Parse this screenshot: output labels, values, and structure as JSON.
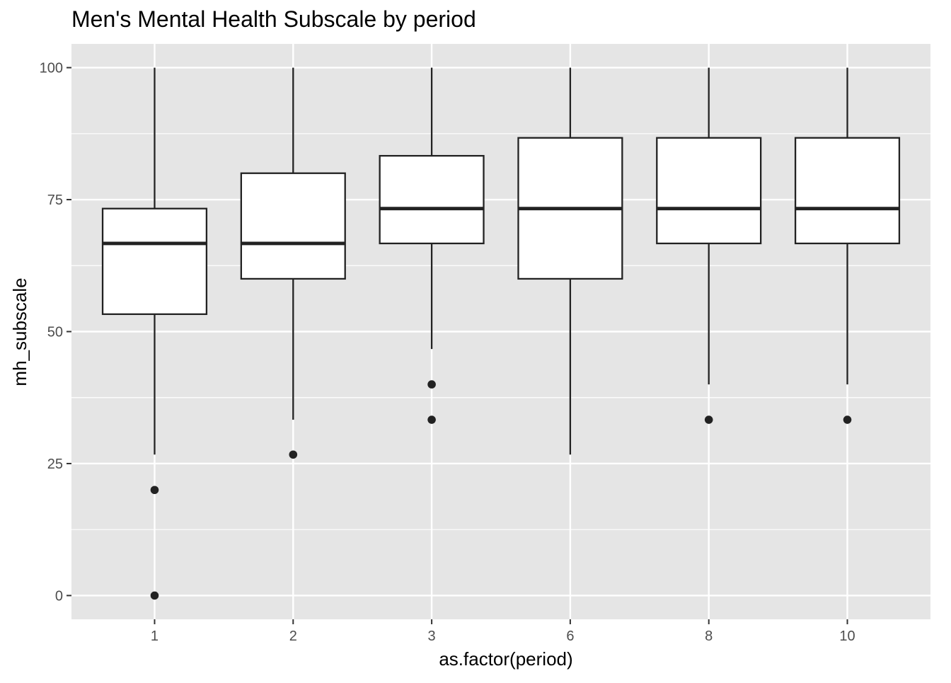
{
  "chart_data": {
    "type": "boxplot",
    "title": "Men's Mental Health Subscale by period",
    "xlabel": "as.factor(period)",
    "ylabel": "mh_subscale",
    "ylim": [
      -4.5,
      104.5
    ],
    "y_ticks": [
      0,
      25,
      50,
      75,
      100
    ],
    "grid": true,
    "categories": [
      "1",
      "2",
      "3",
      "6",
      "8",
      "10"
    ],
    "boxes": [
      {
        "category": "1",
        "whisker_low": 26.7,
        "q1": 53.3,
        "median": 66.7,
        "q3": 73.3,
        "whisker_high": 100,
        "outliers": [
          20,
          0
        ]
      },
      {
        "category": "2",
        "whisker_low": 33.3,
        "q1": 60.0,
        "median": 66.7,
        "q3": 80.0,
        "whisker_high": 100,
        "outliers": [
          26.7
        ]
      },
      {
        "category": "3",
        "whisker_low": 46.7,
        "q1": 66.7,
        "median": 73.3,
        "q3": 83.3,
        "whisker_high": 100,
        "outliers": [
          40,
          33.3
        ]
      },
      {
        "category": "6",
        "whisker_low": 26.7,
        "q1": 60.0,
        "median": 73.3,
        "q3": 86.7,
        "whisker_high": 100,
        "outliers": []
      },
      {
        "category": "8",
        "whisker_low": 40.0,
        "q1": 66.7,
        "median": 73.3,
        "q3": 86.7,
        "whisker_high": 100,
        "outliers": [
          33.3
        ]
      },
      {
        "category": "10",
        "whisker_low": 40.0,
        "q1": 66.7,
        "median": 73.3,
        "q3": 86.7,
        "whisker_high": 100,
        "outliers": [
          33.3
        ]
      }
    ],
    "colors": {
      "panel_background": "#e5e5e5",
      "grid": "#ffffff",
      "box_fill": "#ffffff",
      "box_stroke": "#222222",
      "outlier": "#222222",
      "tick_text": "#4d4d4d",
      "tick_mark": "#333333"
    }
  }
}
